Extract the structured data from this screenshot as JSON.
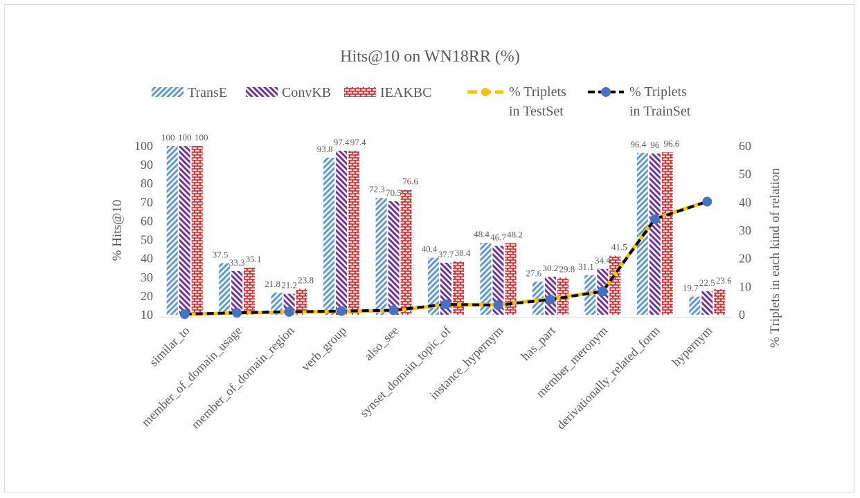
{
  "chart_data": {
    "type": "bar",
    "title": "Hits@10 on WN18RR (%)",
    "ylabel": "% Hits@10",
    "y2label": "% Triplets in each kind of relation",
    "ylim": [
      10,
      100
    ],
    "y2lim": [
      0,
      60
    ],
    "yticks": [
      "10",
      "20",
      "30",
      "40",
      "50",
      "60",
      "70",
      "80",
      "90",
      "100"
    ],
    "y2ticks": [
      "0",
      "10",
      "20",
      "30",
      "40",
      "50",
      "60"
    ],
    "categories": [
      "similar_to",
      "member_of_domain_usage",
      "member_of_domain_region",
      "verb_group",
      "also_see",
      "synset_domain_topic_of",
      "instance_hypernym",
      "has_part",
      "member_meronym",
      "derivationally_related_form",
      "hypernym"
    ],
    "series": [
      {
        "name": "TransE",
        "values": [
          100,
          37.5,
          21.8,
          93.8,
          72.3,
          40.4,
          48.4,
          27.6,
          31.1,
          96.4,
          19.7
        ],
        "color": "#5b9bd5"
      },
      {
        "name": "ConvKB",
        "values": [
          100,
          33.3,
          21.2,
          97.4,
          70.5,
          37.7,
          46.7,
          30.2,
          34.4,
          96,
          22.5
        ],
        "color": "#7030a0"
      },
      {
        "name": "IEAKBC",
        "values": [
          100,
          35.1,
          23.8,
          97.4,
          76.6,
          38.4,
          48.2,
          29.8,
          41.5,
          96.6,
          23.6
        ],
        "color": "#ff0000"
      }
    ],
    "line_series": [
      {
        "name": "% Triplets in TestSet",
        "legend_lines": [
          "% Triplets",
          "in TestSet"
        ],
        "axis": "secondary",
        "color": "#ffc000",
        "values": [
          0.1,
          0.7,
          0.9,
          1.2,
          1.4,
          3.6,
          3.5,
          5.7,
          8.3,
          34.3,
          40.2
        ]
      },
      {
        "name": "% Triplets in TrainSet",
        "legend_lines": [
          "% Triplets",
          "in TrainSet"
        ],
        "axis": "secondary",
        "color": "#000000",
        "marker": "#4472c4",
        "values": [
          0.2,
          0.7,
          1.0,
          1.3,
          1.6,
          3.7,
          3.4,
          5.4,
          8.3,
          34.0,
          40.2
        ]
      }
    ],
    "grid": false,
    "legend_position": "top"
  }
}
